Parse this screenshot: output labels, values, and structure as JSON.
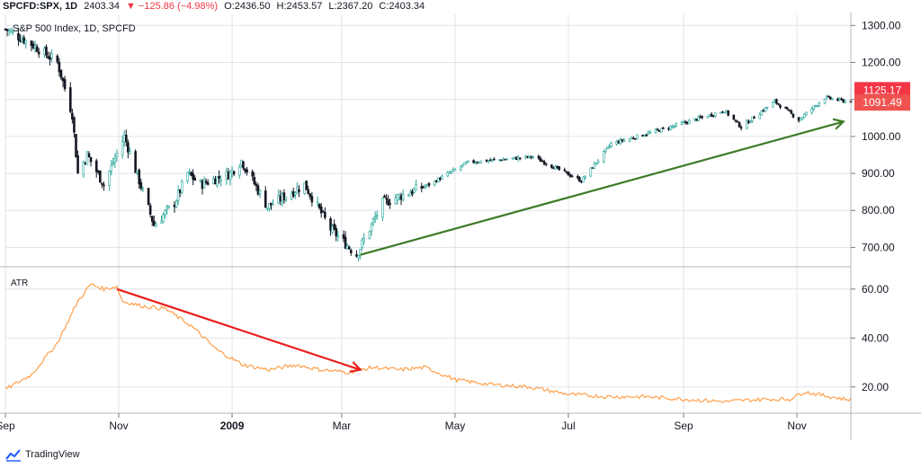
{
  "header": {
    "symbol": "SPCFD:SPX, 1D",
    "last": "2403.34",
    "change": "▼ −125.86 (−4.98%)",
    "open": "O:2436.50",
    "high": "H:2453.57",
    "low": "L:2367.20",
    "close": "C:2403.34"
  },
  "study_title": "S&P 500 Index, 1D, SPCFD",
  "atr_title": "ATR",
  "brand": "TradingView",
  "colors": {
    "up": "#26a69a",
    "down": "#ef5350",
    "candle_body_up": "#ffffff",
    "candle_body_down": "#131722",
    "atr_line": "#ff9f4a",
    "trend_up_arrow": "#3d7a27",
    "trend_down_arrow": "#e8201e",
    "badge_last": "#f23645",
    "badge_prev": "#ef5350",
    "grid": "#e0e3eb"
  },
  "chart_data": [
    {
      "type": "candlestick",
      "title": "S&P 500 Index, 1D, SPCFD",
      "ylim": [
        650,
        1330
      ],
      "y_ticks": [
        "1300.00",
        "1200.00",
        "1100.00",
        "1000.00",
        "900.00",
        "800.00",
        "700.00"
      ],
      "x_ticks": [
        "Sep",
        "Nov",
        "2009",
        "Mar",
        "May",
        "Jul",
        "Sep",
        "Nov"
      ],
      "price_badges": [
        "1125.17",
        "1091.49"
      ],
      "x_range": [
        "2008-09-01",
        "2009-11-30"
      ],
      "anchors": [
        {
          "date": "2008-09-01",
          "price": 1290
        },
        {
          "date": "2008-09-15",
          "price": 1250
        },
        {
          "date": "2008-09-29",
          "price": 1200
        },
        {
          "date": "2008-10-07",
          "price": 1060
        },
        {
          "date": "2008-10-10",
          "price": 900
        },
        {
          "date": "2008-10-15",
          "price": 950
        },
        {
          "date": "2008-10-24",
          "price": 870
        },
        {
          "date": "2008-11-04",
          "price": 1000
        },
        {
          "date": "2008-11-12",
          "price": 880
        },
        {
          "date": "2008-11-20",
          "price": 760
        },
        {
          "date": "2008-12-01",
          "price": 820
        },
        {
          "date": "2008-12-08",
          "price": 900
        },
        {
          "date": "2008-12-15",
          "price": 870
        },
        {
          "date": "2008-12-31",
          "price": 900
        },
        {
          "date": "2009-01-06",
          "price": 935
        },
        {
          "date": "2009-01-20",
          "price": 810
        },
        {
          "date": "2009-02-09",
          "price": 870
        },
        {
          "date": "2009-02-23",
          "price": 750
        },
        {
          "date": "2009-03-09",
          "price": 680
        },
        {
          "date": "2009-03-23",
          "price": 820
        },
        {
          "date": "2009-04-17",
          "price": 870
        },
        {
          "date": "2009-05-08",
          "price": 930
        },
        {
          "date": "2009-06-12",
          "price": 945
        },
        {
          "date": "2009-07-08",
          "price": 880
        },
        {
          "date": "2009-07-24",
          "price": 980
        },
        {
          "date": "2009-08-28",
          "price": 1030
        },
        {
          "date": "2009-09-23",
          "price": 1070
        },
        {
          "date": "2009-10-02",
          "price": 1025
        },
        {
          "date": "2009-10-20",
          "price": 1095
        },
        {
          "date": "2009-11-02",
          "price": 1045
        },
        {
          "date": "2009-11-16",
          "price": 1105
        },
        {
          "date": "2009-11-27",
          "price": 1095
        }
      ]
    },
    {
      "type": "line",
      "title": "ATR",
      "ylim": [
        10,
        68
      ],
      "y_ticks": [
        "60.00",
        "40.00",
        "20.00"
      ],
      "anchors": [
        {
          "date": "2008-09-01",
          "value": 19
        },
        {
          "date": "2008-09-15",
          "value": 25
        },
        {
          "date": "2008-09-29",
          "value": 38
        },
        {
          "date": "2008-10-10",
          "value": 55
        },
        {
          "date": "2008-10-17",
          "value": 62
        },
        {
          "date": "2008-10-24",
          "value": 60
        },
        {
          "date": "2008-10-31",
          "value": 61
        },
        {
          "date": "2008-11-03",
          "value": 55
        },
        {
          "date": "2008-11-14",
          "value": 53
        },
        {
          "date": "2008-11-26",
          "value": 52
        },
        {
          "date": "2008-12-10",
          "value": 45
        },
        {
          "date": "2008-12-24",
          "value": 35
        },
        {
          "date": "2009-01-07",
          "value": 29
        },
        {
          "date": "2009-01-21",
          "value": 27
        },
        {
          "date": "2009-02-04",
          "value": 29
        },
        {
          "date": "2009-02-18",
          "value": 27
        },
        {
          "date": "2009-03-04",
          "value": 26
        },
        {
          "date": "2009-03-18",
          "value": 28
        },
        {
          "date": "2009-04-01",
          "value": 27
        },
        {
          "date": "2009-04-15",
          "value": 28
        },
        {
          "date": "2009-05-01",
          "value": 23
        },
        {
          "date": "2009-05-20",
          "value": 21
        },
        {
          "date": "2009-06-10",
          "value": 20
        },
        {
          "date": "2009-07-01",
          "value": 17
        },
        {
          "date": "2009-07-22",
          "value": 16
        },
        {
          "date": "2009-08-12",
          "value": 16
        },
        {
          "date": "2009-09-01",
          "value": 15
        },
        {
          "date": "2009-09-23",
          "value": 14
        },
        {
          "date": "2009-10-14",
          "value": 15
        },
        {
          "date": "2009-10-28",
          "value": 15
        },
        {
          "date": "2009-11-05",
          "value": 18
        },
        {
          "date": "2009-11-19",
          "value": 16
        },
        {
          "date": "2009-11-27",
          "value": 15
        }
      ]
    }
  ],
  "annotations": [
    {
      "type": "arrow",
      "pane": "price",
      "from": {
        "date": "2009-03-11",
        "price": 680
      },
      "to": {
        "date": "2009-11-26",
        "price": 1040
      },
      "color": "#3d7a27"
    },
    {
      "type": "arrow",
      "pane": "atr",
      "from": {
        "date": "2008-10-31",
        "value": 60
      },
      "to": {
        "date": "2009-03-11",
        "value": 27
      },
      "color": "#e8201e"
    }
  ]
}
